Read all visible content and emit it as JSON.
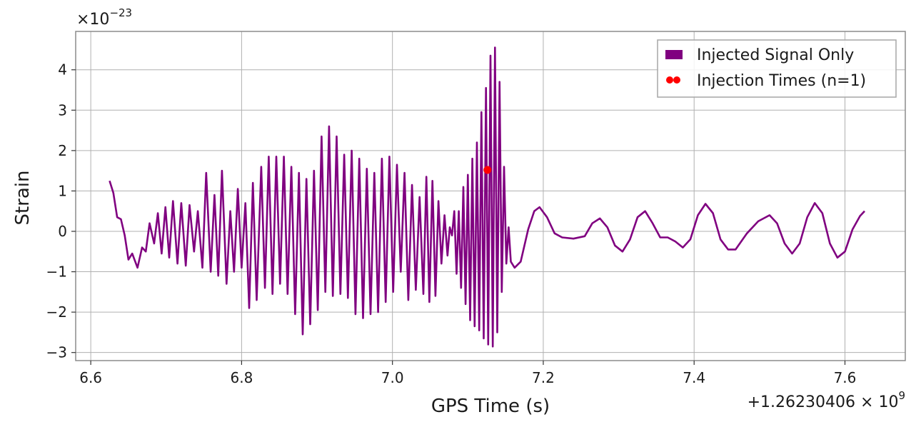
{
  "chart_data": {
    "type": "line",
    "title": "",
    "xlabel": "GPS Time (s)",
    "ylabel": "Strain",
    "x_offset_label": "+1.26230406 × 10",
    "x_offset_exponent": "9",
    "y_scale_label": "×10",
    "y_scale_exponent": "−23",
    "xlim": [
      6.58,
      7.68
    ],
    "ylim": [
      -3.2,
      4.95
    ],
    "x_ticks": [
      {
        "value": 6.6,
        "label": "6.6"
      },
      {
        "value": 6.8,
        "label": "6.8"
      },
      {
        "value": 7.0,
        "label": "7.0"
      },
      {
        "value": 7.2,
        "label": "7.2"
      },
      {
        "value": 7.4,
        "label": "7.4"
      },
      {
        "value": 7.6,
        "label": "7.6"
      }
    ],
    "y_ticks": [
      {
        "value": 4,
        "label": "4"
      },
      {
        "value": 3,
        "label": "3"
      },
      {
        "value": 2,
        "label": "2"
      },
      {
        "value": 1,
        "label": "1"
      },
      {
        "value": 0,
        "label": "0"
      },
      {
        "value": -1,
        "label": "−1"
      },
      {
        "value": -2,
        "label": "−2"
      },
      {
        "value": -3,
        "label": "−3"
      }
    ],
    "grid": true,
    "legend_position": "top-right",
    "series": [
      {
        "name": "Injected Signal Only",
        "style": "line",
        "color": "#800080",
        "points": [
          [
            6.625,
            1.25
          ],
          [
            6.63,
            0.95
          ],
          [
            6.635,
            0.35
          ],
          [
            6.64,
            0.3
          ],
          [
            6.645,
            -0.1
          ],
          [
            6.65,
            -0.7
          ],
          [
            6.655,
            -0.55
          ],
          [
            6.662,
            -0.9
          ],
          [
            6.668,
            -0.4
          ],
          [
            6.673,
            -0.5
          ],
          [
            6.678,
            0.2
          ],
          [
            6.684,
            -0.3
          ],
          [
            6.689,
            0.45
          ],
          [
            6.694,
            -0.55
          ],
          [
            6.699,
            0.6
          ],
          [
            6.704,
            -0.65
          ],
          [
            6.709,
            0.75
          ],
          [
            6.715,
            -0.8
          ],
          [
            6.72,
            0.7
          ],
          [
            6.726,
            -0.85
          ],
          [
            6.731,
            0.65
          ],
          [
            6.737,
            -0.5
          ],
          [
            6.742,
            0.5
          ],
          [
            6.748,
            -0.9
          ],
          [
            6.753,
            1.45
          ],
          [
            6.759,
            -1.0
          ],
          [
            6.764,
            0.9
          ],
          [
            6.769,
            -1.1
          ],
          [
            6.774,
            1.5
          ],
          [
            6.78,
            -1.3
          ],
          [
            6.785,
            0.5
          ],
          [
            6.79,
            -1.0
          ],
          [
            6.795,
            1.05
          ],
          [
            6.8,
            -0.9
          ],
          [
            6.805,
            0.7
          ],
          [
            6.81,
            -1.9
          ],
          [
            6.815,
            1.2
          ],
          [
            6.82,
            -1.7
          ],
          [
            6.826,
            1.6
          ],
          [
            6.831,
            -1.4
          ],
          [
            6.836,
            1.85
          ],
          [
            6.841,
            -1.55
          ],
          [
            6.846,
            1.85
          ],
          [
            6.851,
            -1.3
          ],
          [
            6.856,
            1.85
          ],
          [
            6.861,
            -1.55
          ],
          [
            6.866,
            1.6
          ],
          [
            6.871,
            -2.05
          ],
          [
            6.876,
            1.45
          ],
          [
            6.881,
            -2.55
          ],
          [
            6.886,
            1.3
          ],
          [
            6.891,
            -2.3
          ],
          [
            6.896,
            1.5
          ],
          [
            6.901,
            -1.95
          ],
          [
            6.906,
            2.35
          ],
          [
            6.911,
            -1.5
          ],
          [
            6.916,
            2.6
          ],
          [
            6.921,
            -1.6
          ],
          [
            6.926,
            2.35
          ],
          [
            6.931,
            -1.55
          ],
          [
            6.936,
            1.9
          ],
          [
            6.941,
            -1.65
          ],
          [
            6.946,
            2.0
          ],
          [
            6.951,
            -2.05
          ],
          [
            6.956,
            1.8
          ],
          [
            6.961,
            -2.15
          ],
          [
            6.966,
            1.55
          ],
          [
            6.971,
            -2.05
          ],
          [
            6.976,
            1.45
          ],
          [
            6.981,
            -2.0
          ],
          [
            6.986,
            1.8
          ],
          [
            6.991,
            -1.75
          ],
          [
            6.996,
            1.85
          ],
          [
            7.001,
            -1.5
          ],
          [
            7.006,
            1.65
          ],
          [
            7.011,
            -1.0
          ],
          [
            7.016,
            1.45
          ],
          [
            7.021,
            -1.7
          ],
          [
            7.026,
            1.15
          ],
          [
            7.031,
            -1.45
          ],
          [
            7.036,
            0.85
          ],
          [
            7.041,
            -1.55
          ],
          [
            7.045,
            1.35
          ],
          [
            7.049,
            -1.75
          ],
          [
            7.053,
            1.25
          ],
          [
            7.057,
            -1.6
          ],
          [
            7.061,
            0.75
          ],
          [
            7.065,
            -0.8
          ],
          [
            7.069,
            0.4
          ],
          [
            7.073,
            -0.6
          ],
          [
            7.076,
            0.1
          ],
          [
            7.079,
            -0.1
          ],
          [
            7.082,
            0.5
          ],
          [
            7.085,
            -1.05
          ],
          [
            7.088,
            0.5
          ],
          [
            7.091,
            -1.4
          ],
          [
            7.094,
            1.1
          ],
          [
            7.097,
            -1.8
          ],
          [
            7.1,
            1.4
          ],
          [
            7.103,
            -2.2
          ],
          [
            7.106,
            1.8
          ],
          [
            7.109,
            -2.35
          ],
          [
            7.112,
            2.2
          ],
          [
            7.115,
            -2.45
          ],
          [
            7.118,
            2.95
          ],
          [
            7.121,
            -2.65
          ],
          [
            7.124,
            3.55
          ],
          [
            7.127,
            -2.8
          ],
          [
            7.13,
            4.35
          ],
          [
            7.133,
            -2.85
          ],
          [
            7.136,
            4.55
          ],
          [
            7.139,
            -2.5
          ],
          [
            7.142,
            3.7
          ],
          [
            7.145,
            -1.5
          ],
          [
            7.148,
            1.6
          ],
          [
            7.151,
            -0.8
          ],
          [
            7.154,
            0.1
          ],
          [
            7.157,
            -0.75
          ],
          [
            7.162,
            -0.9
          ],
          [
            7.17,
            -0.75
          ],
          [
            7.18,
            0.05
          ],
          [
            7.188,
            0.5
          ],
          [
            7.195,
            0.6
          ],
          [
            7.205,
            0.35
          ],
          [
            7.215,
            -0.05
          ],
          [
            7.225,
            -0.15
          ],
          [
            7.24,
            -0.18
          ],
          [
            7.255,
            -0.12
          ],
          [
            7.265,
            0.2
          ],
          [
            7.275,
            0.32
          ],
          [
            7.285,
            0.1
          ],
          [
            7.295,
            -0.35
          ],
          [
            7.305,
            -0.5
          ],
          [
            7.315,
            -0.2
          ],
          [
            7.325,
            0.35
          ],
          [
            7.335,
            0.5
          ],
          [
            7.345,
            0.2
          ],
          [
            7.355,
            -0.15
          ],
          [
            7.365,
            -0.15
          ],
          [
            7.375,
            -0.25
          ],
          [
            7.385,
            -0.4
          ],
          [
            7.395,
            -0.2
          ],
          [
            7.405,
            0.4
          ],
          [
            7.415,
            0.68
          ],
          [
            7.425,
            0.45
          ],
          [
            7.435,
            -0.2
          ],
          [
            7.445,
            -0.45
          ],
          [
            7.455,
            -0.45
          ],
          [
            7.47,
            -0.05
          ],
          [
            7.485,
            0.25
          ],
          [
            7.5,
            0.4
          ],
          [
            7.51,
            0.2
          ],
          [
            7.52,
            -0.3
          ],
          [
            7.53,
            -0.55
          ],
          [
            7.54,
            -0.3
          ],
          [
            7.55,
            0.35
          ],
          [
            7.56,
            0.7
          ],
          [
            7.57,
            0.45
          ],
          [
            7.58,
            -0.3
          ],
          [
            7.59,
            -0.65
          ],
          [
            7.6,
            -0.5
          ],
          [
            7.61,
            0.05
          ],
          [
            7.62,
            0.38
          ],
          [
            7.626,
            0.5
          ]
        ]
      },
      {
        "name": "Injection Times (n=1)",
        "style": "scatter",
        "color": "#ff0000",
        "points": [
          [
            7.126,
            1.52
          ]
        ]
      }
    ]
  }
}
